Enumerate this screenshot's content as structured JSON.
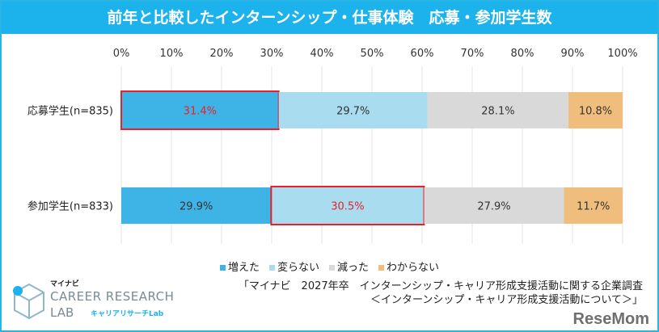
{
  "chart_data": {
    "type": "bar",
    "stacked": true,
    "orientation": "horizontal",
    "title": "前年と比較したインターンシップ・仕事体験　応募・参加学生数",
    "categories": [
      "応募学生(n=835)",
      "参加学生(n=833)"
    ],
    "series": [
      {
        "name": "増えた",
        "values": [
          31.4,
          29.9
        ],
        "color": "#3db3e6"
      },
      {
        "name": "変らない",
        "values": [
          29.7,
          30.5
        ],
        "color": "#a9dcef"
      },
      {
        "name": "減った",
        "values": [
          28.1,
          27.9
        ],
        "color": "#d9d9d9"
      },
      {
        "name": "わからない",
        "values": [
          10.8,
          11.7
        ],
        "color": "#f0be7c"
      }
    ],
    "value_labels": [
      [
        "31.4%",
        "29.7%",
        "28.1%",
        "10.8%"
      ],
      [
        "29.9%",
        "30.5%",
        "27.9%",
        "11.7%"
      ]
    ],
    "highlighted": [
      {
        "category": 0,
        "series": 0
      },
      {
        "category": 1,
        "series": 1
      }
    ],
    "highlight_color": "#e8202a",
    "xlim": [
      0,
      100
    ],
    "xticks": [
      "0%",
      "10%",
      "20%",
      "30%",
      "40%",
      "50%",
      "60%",
      "70%",
      "80%",
      "90%",
      "100%"
    ],
    "grid": true,
    "legend_position": "bottom"
  },
  "source": {
    "line1": "「マイナビ　2027年卒　インターンシップ・キャリア形成支援活動に関する企業調査",
    "line2": "＜インターンシップ・キャリア形成支援活動について＞」"
  },
  "logo": {
    "sub": "マイナビ",
    "main": "CAREER RESEARCH",
    "lab": "LAB",
    "jp": "キャリアリサーチLab"
  },
  "watermark": "ReseMom"
}
